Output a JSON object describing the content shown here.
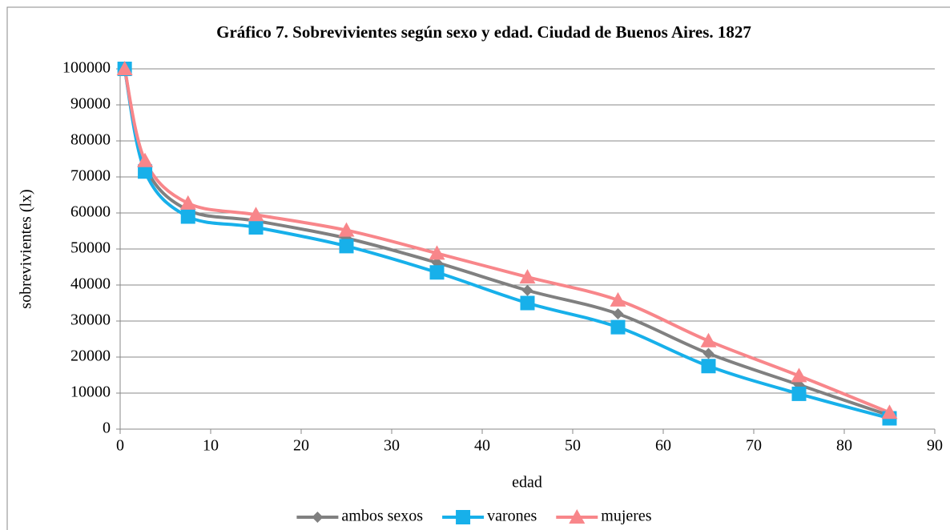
{
  "chart_data": {
    "type": "line",
    "title": "Gráfico 7. Sobrevivientes según sexo y edad. Ciudad de Buenos Aires. 1827",
    "x_label": "edad",
    "y_label": "sobrevivientes (lx)",
    "x": [
      0.5,
      2.75,
      7.5,
      15,
      25,
      35,
      45,
      55,
      65,
      75,
      85
    ],
    "series": [
      {
        "name": "ambos sexos",
        "color": "#808080",
        "marker": "diamond",
        "values": [
          100000,
          73000,
          60800,
          57800,
          53000,
          46200,
          38500,
          32000,
          21000,
          12300,
          3800
        ]
      },
      {
        "name": "varones",
        "color": "#17b0ea",
        "marker": "square",
        "values": [
          100000,
          71500,
          59000,
          56000,
          50800,
          43500,
          35000,
          28300,
          17500,
          9800,
          3000
        ]
      },
      {
        "name": "mujeres",
        "color": "#f8868a",
        "marker": "triangle",
        "values": [
          100000,
          74500,
          62700,
          59500,
          55200,
          48800,
          42200,
          35800,
          24500,
          14800,
          4600
        ]
      }
    ],
    "xlim": [
      0,
      90
    ],
    "xticks": [
      0,
      10,
      20,
      30,
      40,
      50,
      60,
      70,
      80,
      90
    ],
    "ylim": [
      0,
      100000
    ],
    "yticks": [
      0,
      10000,
      20000,
      30000,
      40000,
      50000,
      60000,
      70000,
      80000,
      90000,
      100000
    ],
    "grid": true,
    "legend": "bottom"
  }
}
